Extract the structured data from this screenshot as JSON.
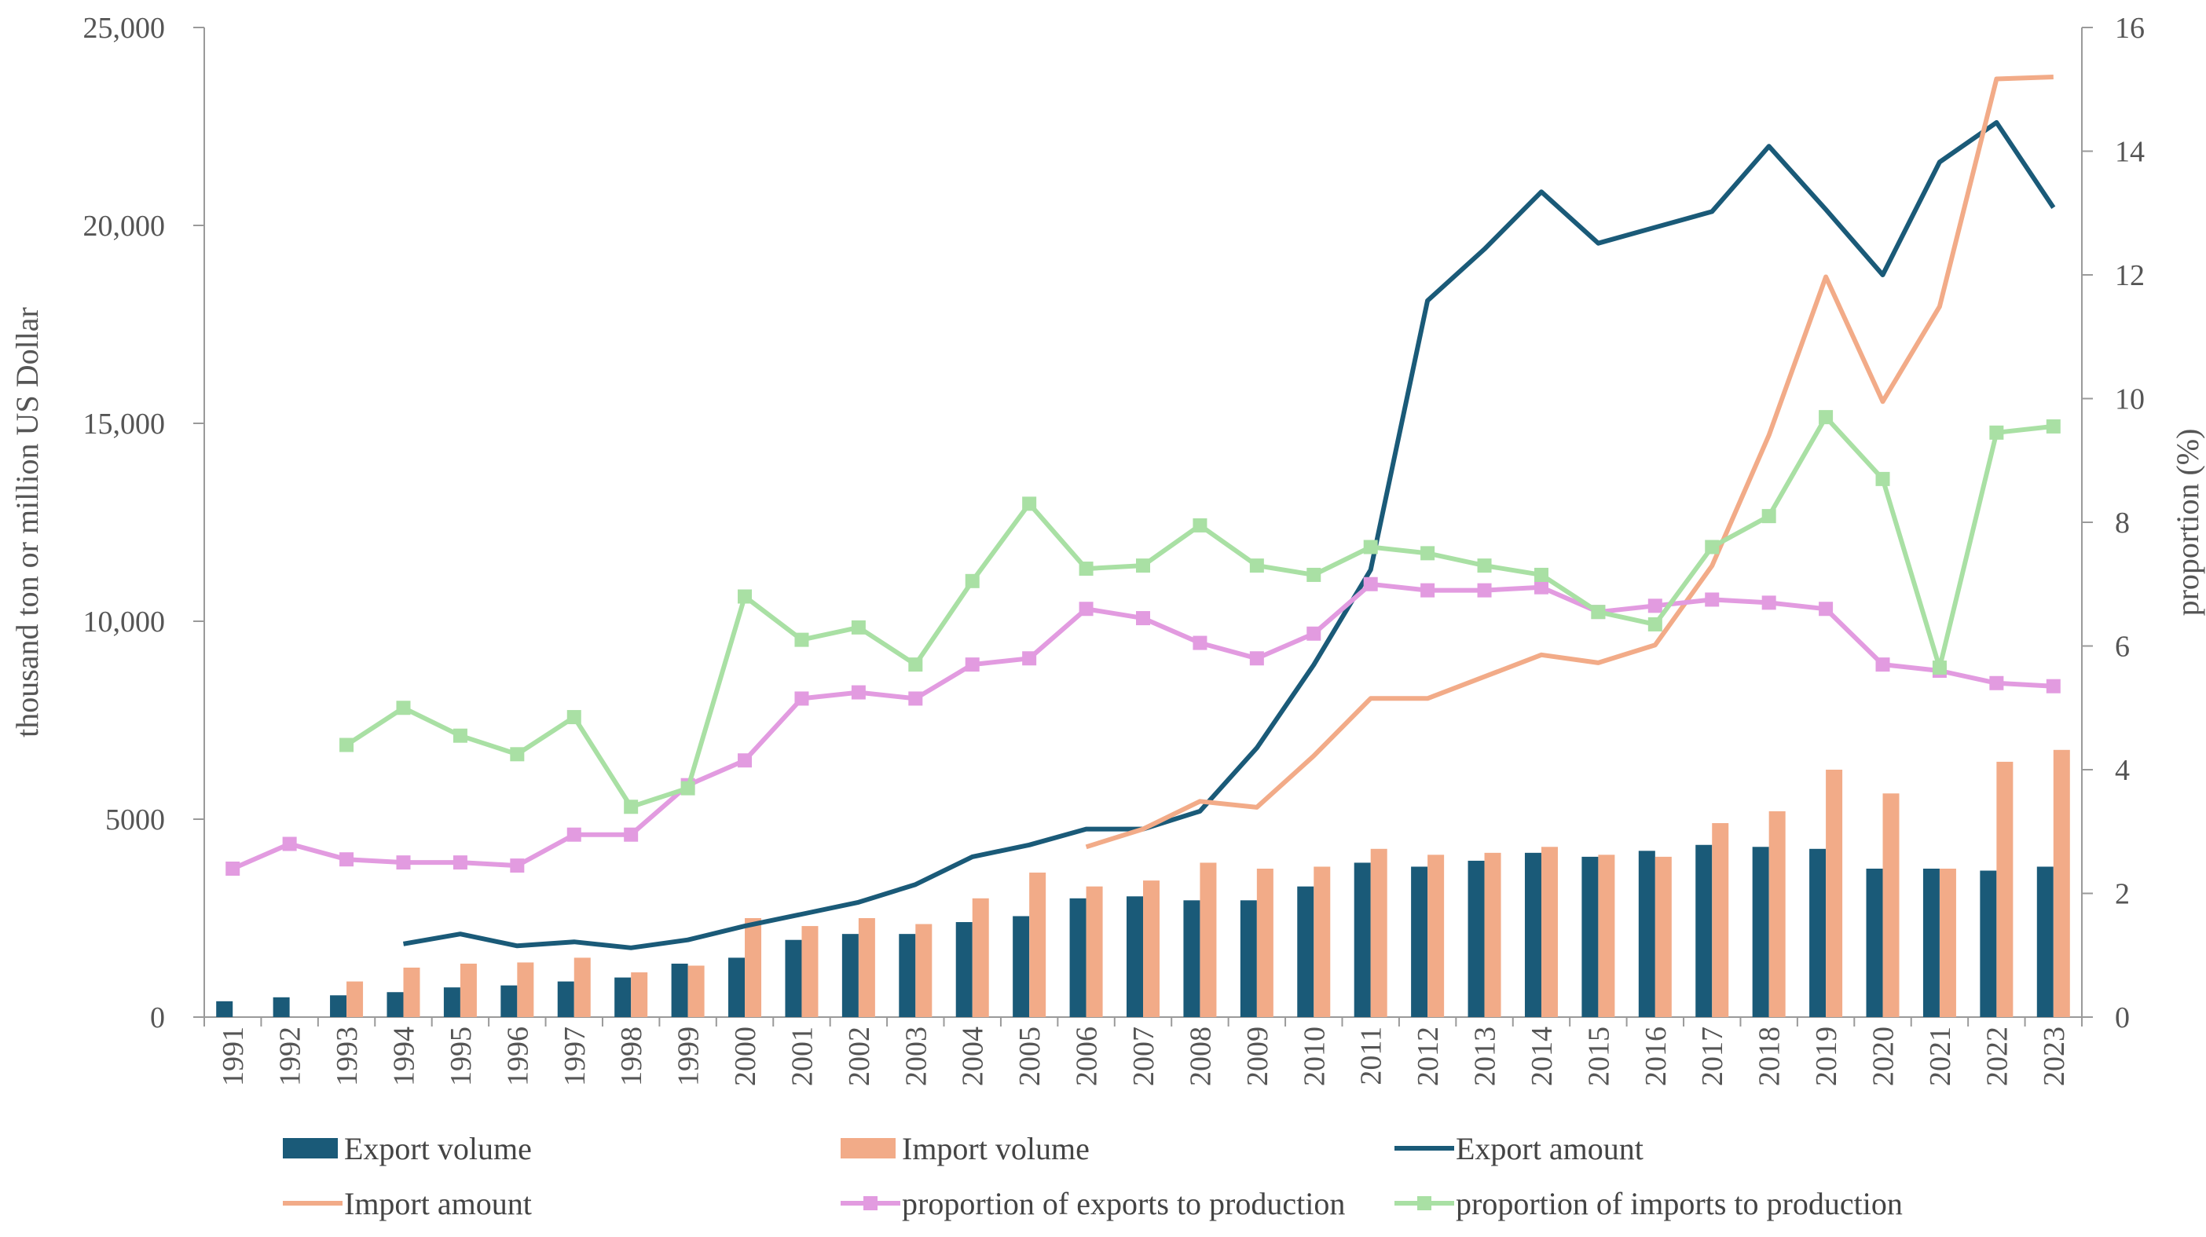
{
  "chart_data": {
    "type": "bar",
    "title": "",
    "categories": [
      "1991",
      "1992",
      "1993",
      "1994",
      "1995",
      "1996",
      "1997",
      "1998",
      "1999",
      "2000",
      "2001",
      "2002",
      "2003",
      "2004",
      "2005",
      "2006",
      "2007",
      "2008",
      "2009",
      "2010",
      "2011",
      "2012",
      "2013",
      "2014",
      "2015",
      "2016",
      "2017",
      "2018",
      "2019",
      "2020",
      "2021",
      "2022",
      "2023"
    ],
    "ylabel": "thousand ton or million US Dollar",
    "y2label": "proportion (%)",
    "ylim": [
      0,
      25000
    ],
    "y2lim": [
      0,
      16
    ],
    "yticks": [
      "0",
      "5000",
      "10,000",
      "15,000",
      "20,000",
      "25,000"
    ],
    "y2ticks": [
      "0",
      "2",
      "4",
      "6",
      "8",
      "10",
      "12",
      "14",
      "16"
    ],
    "series": [
      {
        "name": "Export volume",
        "kind": "bar",
        "axis": "left",
        "color": "#1a5a78",
        "values": [
          400,
          500,
          550,
          630,
          750,
          800,
          900,
          1000,
          1350,
          1500,
          1950,
          2100,
          2100,
          2400,
          2550,
          3000,
          3050,
          2950,
          2950,
          3300,
          3900,
          3800,
          3950,
          4150,
          4050,
          4200,
          4350,
          4300,
          4250,
          3750,
          3750,
          3700,
          3800
        ]
      },
      {
        "name": "Import volume",
        "kind": "bar",
        "axis": "left",
        "color": "#f2ab88",
        "values": [
          null,
          null,
          900,
          1250,
          1350,
          1380,
          1500,
          1130,
          1300,
          2500,
          2300,
          2500,
          2350,
          3000,
          3650,
          3300,
          3450,
          3900,
          3750,
          3800,
          4250,
          4100,
          4150,
          4300,
          4100,
          4050,
          4900,
          5200,
          6250,
          5650,
          3750,
          6450,
          6750
        ]
      },
      {
        "name": "Export amount",
        "kind": "line",
        "axis": "left",
        "color": "#1a5a78",
        "values": [
          null,
          null,
          null,
          1850,
          2100,
          1800,
          1900,
          1750,
          1950,
          2300,
          2600,
          2900,
          3350,
          4050,
          4350,
          4750,
          4750,
          5200,
          6800,
          8900,
          11300,
          18100,
          19400,
          20850,
          19550,
          19950,
          20350,
          22000,
          20400,
          18750,
          21600,
          22600,
          20450
        ]
      },
      {
        "name": "Import amount",
        "kind": "line",
        "axis": "left",
        "color": "#f2ab88",
        "values": [
          null,
          null,
          null,
          null,
          null,
          null,
          null,
          null,
          null,
          null,
          null,
          null,
          null,
          null,
          null,
          4300,
          4750,
          5450,
          5300,
          6600,
          8050,
          8050,
          8600,
          9150,
          8950,
          9400,
          11400,
          14700,
          18700,
          15550,
          17950,
          23700,
          23750
        ]
      },
      {
        "name": "proportion of exports to production",
        "kind": "line-marker",
        "axis": "right",
        "color": "#e29be0",
        "values": [
          2.4,
          2.8,
          2.55,
          2.5,
          2.5,
          2.45,
          2.95,
          2.95,
          3.75,
          4.15,
          5.15,
          5.25,
          5.15,
          5.7,
          5.8,
          6.6,
          6.45,
          6.05,
          5.8,
          6.2,
          7.0,
          6.9,
          6.9,
          6.95,
          6.55,
          6.65,
          6.75,
          6.7,
          6.6,
          5.7,
          5.6,
          5.4,
          5.35
        ]
      },
      {
        "name": "proportion of imports to production",
        "kind": "line-marker",
        "axis": "right",
        "color": "#a9e0a4",
        "values": [
          null,
          null,
          4.4,
          5.0,
          4.55,
          4.25,
          4.85,
          3.4,
          3.7,
          6.8,
          6.1,
          6.3,
          5.7,
          7.05,
          8.3,
          7.25,
          7.3,
          7.95,
          7.3,
          7.15,
          7.6,
          7.5,
          7.3,
          7.15,
          6.55,
          6.35,
          7.6,
          8.1,
          9.7,
          8.7,
          5.65,
          9.45,
          9.55
        ]
      }
    ]
  }
}
